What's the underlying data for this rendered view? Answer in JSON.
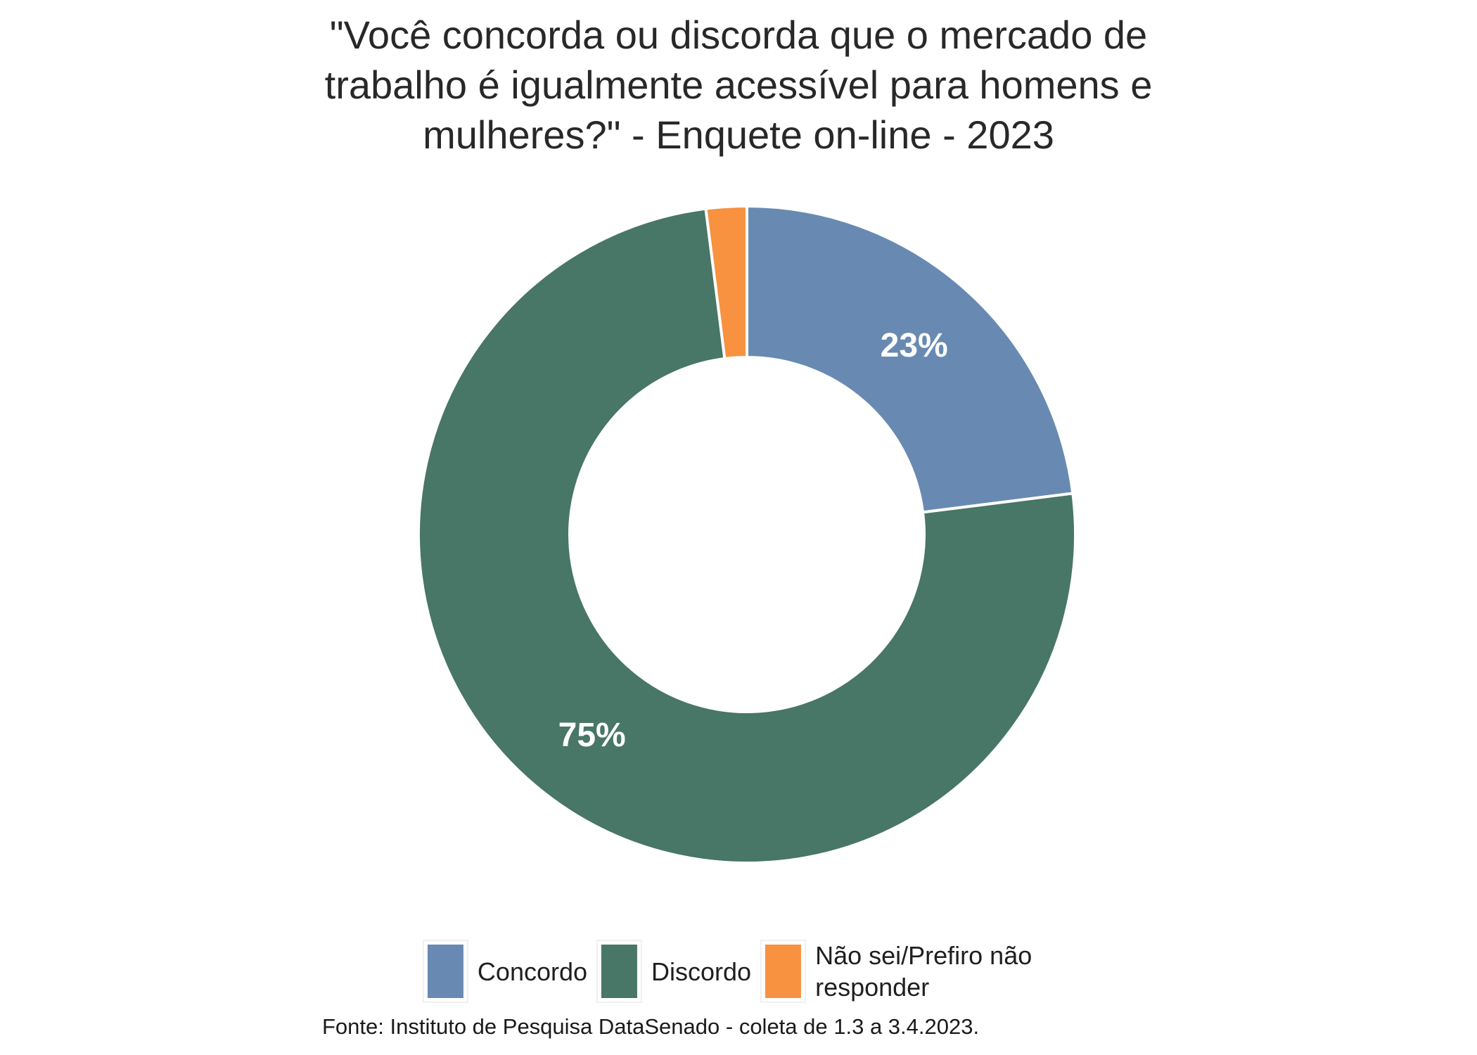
{
  "title": {
    "lines": [
      "\"Você concorda ou discorda que o mercado de",
      "trabalho é igualmente acessível para homens e",
      "mulheres?\" - Enquete on-line - 2023"
    ]
  },
  "chart_data": {
    "type": "pie",
    "subtype": "donut",
    "title": "\"Você concorda ou discorda que o mercado de trabalho é igualmente acessível para homens e mulheres?\" - Enquete on-line - 2023",
    "categories": [
      "Concordo",
      "Discordo",
      "Não sei/Prefiro não responder"
    ],
    "values": [
      23,
      75,
      2
    ],
    "unit": "%",
    "slice_labels": [
      "23%",
      "75%",
      ""
    ],
    "colors": [
      "#688AB2",
      "#487667",
      "#F89140"
    ],
    "start_angle_deg": 0,
    "direction": "clockwise",
    "inner_radius_ratio": 0.54,
    "slice_separator_color": "#ffffff",
    "legend_position": "bottom",
    "source": "Fonte: Instituto de Pesquisa DataSenado - coleta de 1.3 a 3.4.2023."
  },
  "legend": {
    "items": [
      {
        "label": "Concordo"
      },
      {
        "label": "Discordo"
      },
      {
        "label": "Não sei/Prefiro não responder"
      }
    ]
  },
  "footer": {
    "source": "Fonte: Instituto de Pesquisa DataSenado - coleta de 1.3 a 3.4.2023."
  }
}
